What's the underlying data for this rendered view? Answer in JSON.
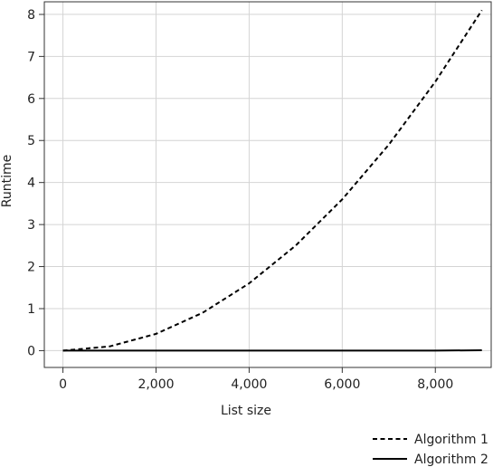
{
  "chart_data": {
    "type": "line",
    "title": "",
    "xlabel": "List size",
    "ylabel": "Runtime",
    "xlim": [
      -400,
      9200
    ],
    "ylim": [
      -0.4,
      8.3
    ],
    "grid": true,
    "legend_position": "bottom-right",
    "x_ticks": [
      0,
      2000,
      4000,
      6000,
      8000
    ],
    "x_tick_labels": [
      "0",
      "2,000",
      "4,000",
      "6,000",
      "8,000"
    ],
    "y_ticks": [
      0,
      1,
      2,
      3,
      4,
      5,
      6,
      7,
      8
    ],
    "y_tick_labels": [
      "0",
      "1",
      "2",
      "3",
      "4",
      "5",
      "6",
      "7",
      "8"
    ],
    "series": [
      {
        "name": "Algorithm 1",
        "style": "dashed",
        "color": "#000000",
        "x": [
          0,
          1000,
          2000,
          3000,
          4000,
          5000,
          6000,
          7000,
          8000,
          9000
        ],
        "y": [
          0.0,
          0.1,
          0.4,
          0.9,
          1.6,
          2.5,
          3.6,
          4.9,
          6.4,
          8.1
        ]
      },
      {
        "name": "Algorithm 2",
        "style": "solid",
        "color": "#000000",
        "x": [
          0,
          1000,
          2000,
          3000,
          4000,
          5000,
          6000,
          7000,
          8000,
          9000
        ],
        "y": [
          0.0,
          0.0,
          0.0,
          0.0,
          0.0,
          0.0,
          0.0,
          0.0,
          0.0,
          0.01
        ]
      }
    ]
  }
}
